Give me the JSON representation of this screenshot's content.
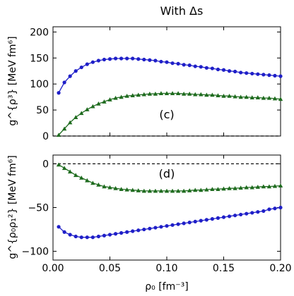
{
  "chart_data": {
    "title": "With Δs",
    "xlabel": "ρ₀ [fm⁻³]",
    "xlim": [
      0,
      0.2
    ],
    "xticks": [
      "0.00",
      "0.05",
      "0.10",
      "0.15",
      "0.20"
    ],
    "charts": [
      {
        "type": "line",
        "panel_label": "(c)",
        "ylabel": "g^{ρ³} [MeV fm⁶]",
        "ylim": [
          0,
          210
        ],
        "yticks": [
          "0",
          "50",
          "100",
          "150",
          "200"
        ],
        "zero_line": true,
        "x": [
          0.005,
          0.01,
          0.015,
          0.02,
          0.025,
          0.03,
          0.035,
          0.04,
          0.045,
          0.05,
          0.055,
          0.06,
          0.065,
          0.07,
          0.075,
          0.08,
          0.085,
          0.09,
          0.095,
          0.1,
          0.105,
          0.11,
          0.115,
          0.12,
          0.125,
          0.13,
          0.135,
          0.14,
          0.145,
          0.15,
          0.155,
          0.16,
          0.165,
          0.17,
          0.175,
          0.18,
          0.185,
          0.19,
          0.195,
          0.2
        ],
        "series": [
          {
            "marker": "circle",
            "color": "#1f1fc8",
            "values": [
              83,
              103,
              115,
              125,
              132,
              138,
              142,
              145,
              147,
              148,
              149,
              149,
              149,
              149,
              148,
              147,
              146,
              145,
              143,
              142,
              140,
              139,
              137,
              136,
              134,
              133,
              131,
              130,
              128,
              127,
              125,
              124,
              122,
              121,
              120,
              119,
              118,
              117,
              116,
              115
            ]
          },
          {
            "marker": "triangle",
            "color": "#1e6b1e",
            "values": [
              2,
              14,
              26,
              36,
              44,
              51,
              57,
              62,
              66,
              70,
              73,
              75,
              77,
              78,
              79,
              80,
              81,
              81,
              82,
              82,
              82,
              82,
              81,
              81,
              80,
              80,
              79,
              79,
              78,
              77,
              77,
              76,
              75,
              75,
              74,
              74,
              73,
              73,
              72,
              71
            ]
          }
        ]
      },
      {
        "type": "line",
        "panel_label": "(d)",
        "ylabel": "g^{ρ₀ρ₁²} [MeV fm⁶]",
        "ylim": [
          -110,
          10
        ],
        "yticks": [
          "0",
          "−50",
          "−100"
        ],
        "ytick_values": [
          0,
          -50,
          -100
        ],
        "zero_line": true,
        "x": [
          0.005,
          0.01,
          0.015,
          0.02,
          0.025,
          0.03,
          0.035,
          0.04,
          0.045,
          0.05,
          0.055,
          0.06,
          0.065,
          0.07,
          0.075,
          0.08,
          0.085,
          0.09,
          0.095,
          0.1,
          0.105,
          0.11,
          0.115,
          0.12,
          0.125,
          0.13,
          0.135,
          0.14,
          0.145,
          0.15,
          0.155,
          0.16,
          0.165,
          0.17,
          0.175,
          0.18,
          0.185,
          0.19,
          0.195,
          0.2
        ],
        "series": [
          {
            "marker": "circle",
            "color": "#1f1fc8",
            "values": [
              -72,
              -78,
              -81,
              -83,
              -84,
              -84,
              -84,
              -83,
              -82,
              -81,
              -80,
              -79,
              -78,
              -77,
              -76,
              -75,
              -74,
              -73,
              -72,
              -71,
              -70,
              -69,
              -68,
              -67,
              -66,
              -65,
              -64,
              -63,
              -62,
              -61,
              -60,
              -59,
              -58,
              -57,
              -56,
              -55,
              -54,
              -52,
              -51,
              -50
            ]
          },
          {
            "marker": "triangle",
            "color": "#1e6b1e",
            "values": [
              -1,
              -5,
              -9,
              -13,
              -16,
              -19,
              -22,
              -24,
              -26,
              -27,
              -28,
              -29,
              -29.5,
              -30,
              -30.5,
              -31,
              -31,
              -31,
              -31,
              -31,
              -31,
              -31,
              -31,
              -30.5,
              -30,
              -30,
              -29.5,
              -29,
              -29,
              -28.5,
              -28,
              -28,
              -27.5,
              -27,
              -27,
              -26.5,
              -26,
              -26,
              -25.5,
              -25
            ]
          }
        ]
      }
    ]
  }
}
